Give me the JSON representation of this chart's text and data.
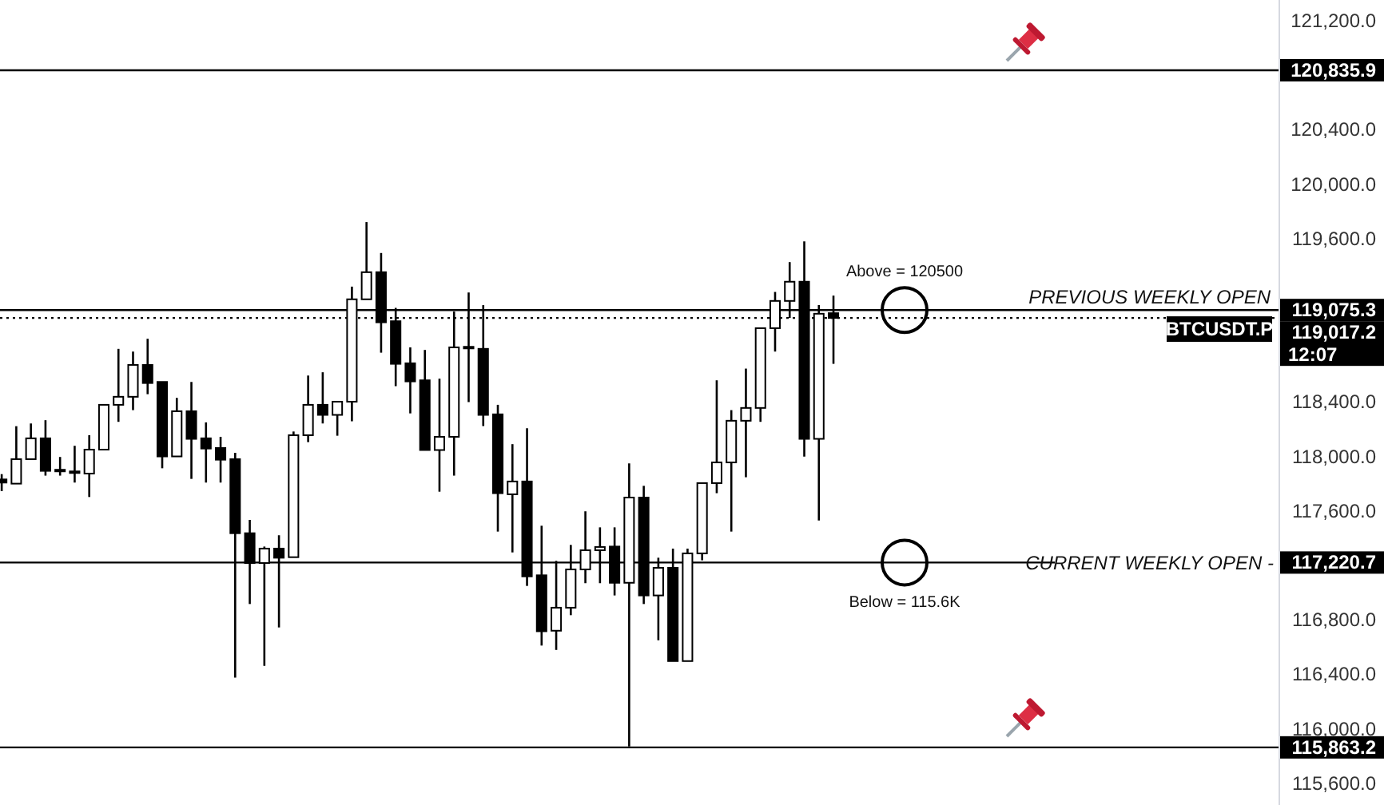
{
  "chart_data": {
    "type": "candlestick",
    "categories": [
      null,
      null,
      null,
      null,
      null,
      null,
      null,
      null,
      null,
      null,
      null,
      null,
      null,
      null,
      null,
      null,
      null,
      null,
      null,
      null,
      null,
      null,
      null,
      null,
      null,
      null,
      null,
      null,
      null,
      null,
      null,
      null,
      null,
      null,
      null,
      null,
      null,
      null,
      null,
      null,
      null,
      null,
      null,
      null,
      null,
      null,
      null,
      null,
      null,
      null,
      null,
      null,
      null,
      null,
      null,
      null,
      null,
      null,
      null,
      null,
      null,
      null,
      null,
      null,
      null,
      null,
      null,
      null,
      null,
      null,
      null,
      null,
      null,
      null,
      null,
      null,
      null,
      null,
      null,
      null,
      null,
      null,
      null,
      null,
      null,
      null,
      null,
      null
    ],
    "ohlc": [
      [
        117831,
        117870,
        117745,
        117808
      ],
      [
        117800,
        118222,
        117800,
        117980
      ],
      [
        117980,
        118242,
        117980,
        118133
      ],
      [
        118133,
        118266,
        117859,
        117894
      ],
      [
        117894,
        117996,
        117859,
        117902
      ],
      [
        117886,
        118078,
        117808,
        117890
      ],
      [
        117874,
        118156,
        117702,
        118050
      ],
      [
        118050,
        118379,
        118050,
        118379
      ],
      [
        118379,
        118790,
        118254,
        118438
      ],
      [
        118438,
        118770,
        118340,
        118672
      ],
      [
        118672,
        118864,
        118457,
        118539
      ],
      [
        118547,
        118547,
        117913,
        118000
      ],
      [
        118000,
        118430,
        118000,
        118332
      ],
      [
        118332,
        118547,
        117835,
        118129
      ],
      [
        118133,
        118250,
        117808,
        118058
      ],
      [
        118062,
        118144,
        117808,
        117976
      ],
      [
        117980,
        118027,
        116376,
        117436
      ],
      [
        117436,
        117534,
        116916,
        117217
      ],
      [
        117217,
        117338,
        116462,
        117323
      ],
      [
        117323,
        117421,
        116744,
        117256
      ],
      [
        117260,
        118183,
        117260,
        118156
      ],
      [
        118156,
        118594,
        118105,
        118379
      ],
      [
        118379,
        118618,
        118242,
        118305
      ],
      [
        118305,
        118402,
        118152,
        118402
      ],
      [
        118402,
        119247,
        118258,
        119154
      ],
      [
        119154,
        119721,
        119154,
        119353
      ],
      [
        119353,
        119494,
        118762,
        118985
      ],
      [
        118993,
        119091,
        118516,
        118680
      ],
      [
        118684,
        118801,
        118316,
        118551
      ],
      [
        118559,
        118782,
        118047,
        118047
      ],
      [
        118047,
        118571,
        117741,
        118144
      ],
      [
        118144,
        119064,
        117859,
        118801
      ],
      [
        118797,
        119204,
        118399,
        118805
      ],
      [
        118790,
        119111,
        118223,
        118305
      ],
      [
        118309,
        118379,
        117448,
        117730
      ],
      [
        117722,
        118090,
        117295,
        117816
      ],
      [
        117816,
        118207,
        117049,
        117119
      ],
      [
        117127,
        117491,
        116611,
        116716
      ],
      [
        116720,
        117233,
        116579,
        116889
      ],
      [
        116889,
        117350,
        116834,
        117170
      ],
      [
        117170,
        117597,
        117069,
        117311
      ],
      [
        117311,
        117479,
        117069,
        117335
      ],
      [
        117338,
        117479,
        116979,
        117072
      ],
      [
        117072,
        117949,
        115870,
        117698
      ],
      [
        117698,
        117784,
        116916,
        116979
      ],
      [
        116979,
        117256,
        116650,
        117182
      ],
      [
        117182,
        117323,
        116497,
        116497
      ],
      [
        116497,
        117323,
        116497,
        117288
      ],
      [
        117288,
        117804,
        117237,
        117804
      ],
      [
        117804,
        118559,
        117730,
        117956
      ],
      [
        117956,
        118340,
        117448,
        118262
      ],
      [
        118262,
        118645,
        117847,
        118356
      ],
      [
        118356,
        118942,
        118254,
        118942
      ],
      [
        118942,
        119208,
        118770,
        119142
      ],
      [
        119142,
        119427,
        119017,
        119283
      ],
      [
        119283,
        119580,
        117999,
        118129
      ],
      [
        118129,
        119111,
        117530,
        119048
      ],
      [
        119052,
        119181,
        118680,
        119017
      ],
      null,
      null,
      null,
      null,
      null,
      null,
      null,
      null,
      null,
      null,
      null,
      null,
      null,
      null,
      null,
      null,
      null,
      null,
      null,
      null,
      null,
      null,
      null,
      null,
      null,
      null,
      null,
      null,
      null,
      null
    ],
    "ylim": [
      115440,
      121352
    ],
    "yticks": [
      {
        "value": 121200,
        "label": "121,200.0"
      },
      {
        "value": 120400,
        "label": "120,400.0"
      },
      {
        "value": 120000,
        "label": "120,000.0"
      },
      {
        "value": 119600,
        "label": "119,600.0"
      },
      {
        "value": 118400,
        "label": "118,400.0"
      },
      {
        "value": 118000,
        "label": "118,000.0"
      },
      {
        "value": 117600,
        "label": "117,600.0"
      },
      {
        "value": 116800,
        "label": "116,800.0"
      },
      {
        "value": 116400,
        "label": "116,400.0"
      },
      {
        "value": 116000,
        "label": "116,000.0"
      },
      {
        "value": 115600,
        "label": "115,600.0"
      }
    ],
    "tick_labels": "y",
    "grid": false,
    "ref_lines": [
      {
        "axis": "y",
        "value": 120835.9,
        "label": "120,835.9",
        "color": "#000000",
        "line_style": "solid"
      },
      {
        "axis": "y",
        "value": 119075.3,
        "label": "119,075.3",
        "color": "#000000",
        "line_style": "solid"
      },
      {
        "axis": "y",
        "value": 119017.2,
        "label": "119,017.2",
        "color": "#000000",
        "line_style": "dotted"
      },
      {
        "axis": "y",
        "value": 117220.7,
        "label": "117,220.7",
        "color": "#000000",
        "line_style": "solid"
      },
      {
        "axis": "y",
        "value": 115863.2,
        "label": "115,863.2",
        "color": "#000000",
        "line_style": "solid"
      }
    ],
    "annotations": [
      {
        "text": "PREVIOUS WEEKLY OPEN",
        "y": 119075.3
      },
      {
        "text": "CURRENT WEEKLY OPEN -",
        "y": 117220.7
      },
      {
        "text": "BTCUSDT.P",
        "y": 119017.2
      },
      "12:07",
      "Above = 120500",
      "Below = 115.6K"
    ]
  }
}
